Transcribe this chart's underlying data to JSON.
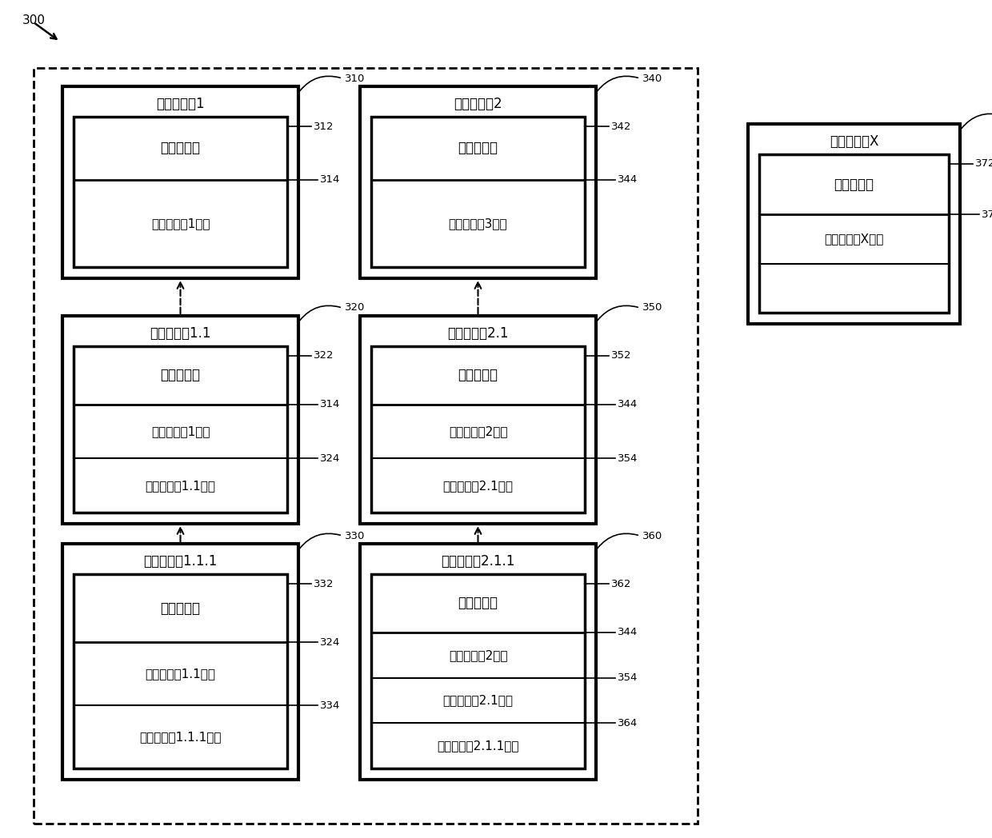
{
  "background": "#ffffff",
  "text_org1": "区块链组织1",
  "text_org2": "区块链组织2",
  "text_orgX": "区块链组织X",
  "text_org11": "区块链组织1.1",
  "text_org21": "区块链组织2.1",
  "text_org111": "区块链组织1.1.1",
  "text_org211": "区块链组织2.1.1",
  "text_pub_cert": "公开证书集",
  "text_cert1": "区块链组织1证书",
  "text_cert3": "区块链组织3证书",
  "text_certX": "区块链组织X证书",
  "text_cert11": "区块链组织1.1证书",
  "text_cert2": "区块链组织2证书",
  "text_cert21": "区块链组织2.1证书",
  "text_cert111": "区块链组织1.1.1证书",
  "text_cert211": "区块链组织2.1.1证书"
}
